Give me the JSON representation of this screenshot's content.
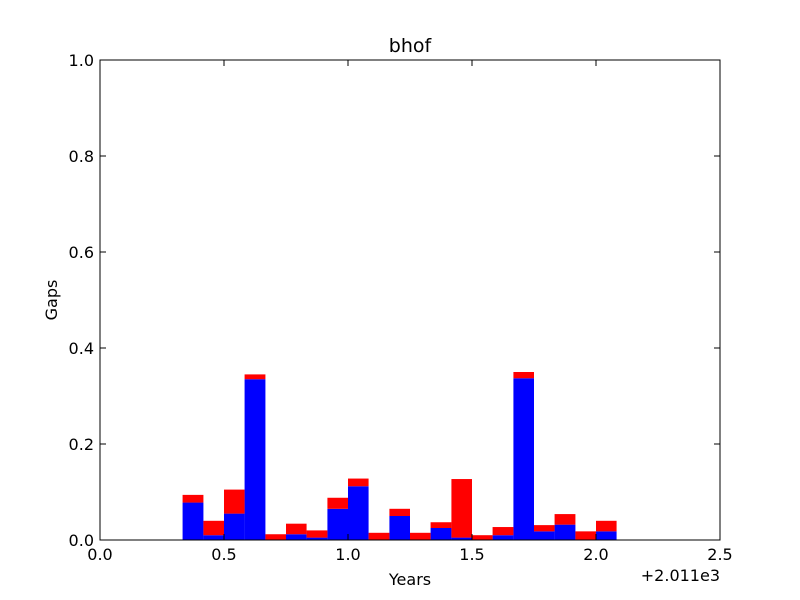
{
  "chart_data": {
    "type": "bar",
    "title": "bhof",
    "xlabel": "Years",
    "ylabel": "Gaps",
    "x_offset_label": "+2.011e3",
    "xlim": [
      0.0,
      2.5
    ],
    "ylim": [
      0.0,
      1.0
    ],
    "xticks": [
      "0.0",
      "0.5",
      "1.0",
      "1.5",
      "2.0",
      "2.5"
    ],
    "yticks": [
      "0.0",
      "0.2",
      "0.4",
      "0.6",
      "0.8",
      "1.0"
    ],
    "grid": false,
    "legend": "none",
    "stacked": true,
    "bin_edges": [
      0.333,
      0.417,
      0.5,
      0.583,
      0.667,
      0.75,
      0.833,
      0.917,
      1.0,
      1.083,
      1.167,
      1.25,
      1.333,
      1.417,
      1.5,
      1.583,
      1.667,
      1.75,
      1.833,
      1.917,
      2.0,
      2.083
    ],
    "series": [
      {
        "color": "#0000ff",
        "values": [
          0.078,
          0.01,
          0.055,
          0.335,
          0.0,
          0.012,
          0.005,
          0.065,
          0.112,
          0.0,
          0.05,
          0.0,
          0.025,
          0.005,
          0.0,
          0.01,
          0.337,
          0.018,
          0.032,
          0.0,
          0.018
        ]
      },
      {
        "color": "#ff0000",
        "values": [
          0.016,
          0.03,
          0.05,
          0.01,
          0.012,
          0.022,
          0.015,
          0.023,
          0.016,
          0.015,
          0.015,
          0.015,
          0.012,
          0.122,
          0.01,
          0.017,
          0.013,
          0.013,
          0.022,
          0.018,
          0.022
        ]
      }
    ]
  }
}
